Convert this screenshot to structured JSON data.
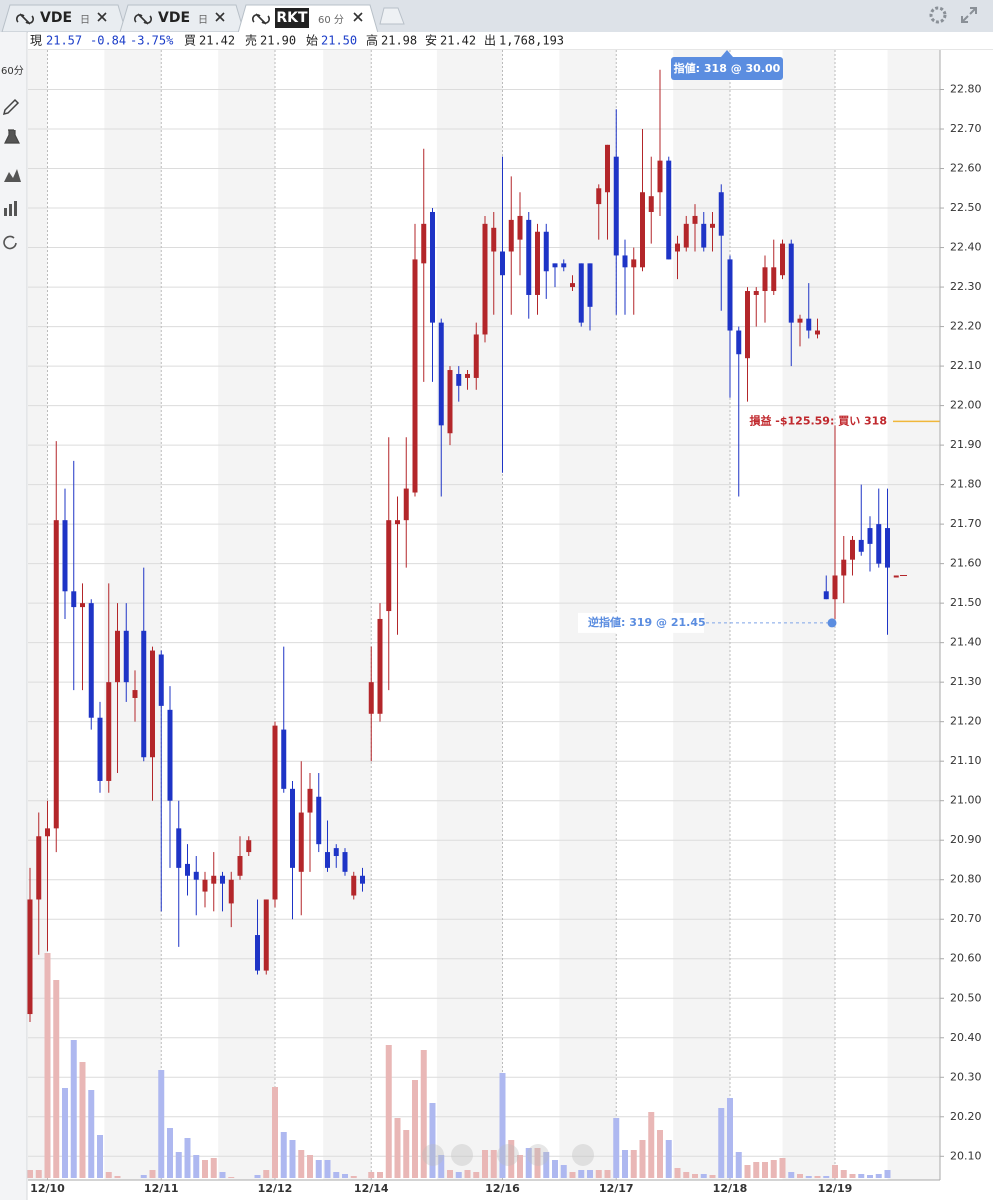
{
  "tabs": [
    {
      "symbol": "VDE",
      "period": "日"
    },
    {
      "symbol": "VDE",
      "period": "日"
    },
    {
      "symbol": "RKT",
      "period": "60 分"
    }
  ],
  "toolbar": {
    "interval": "60分"
  },
  "quote": {
    "last_label": "現",
    "last": "21.57",
    "change": "-0.84",
    "change_pct": "-3.75%",
    "fields": [
      {
        "label": "買",
        "value": "21.42"
      },
      {
        "label": "売",
        "value": "21.90"
      },
      {
        "label": "始",
        "value": "21.50"
      },
      {
        "label": "高",
        "value": "21.98"
      },
      {
        "label": "安",
        "value": "21.42"
      },
      {
        "label": "出",
        "value": "1,768,193"
      }
    ]
  },
  "chart_data": {
    "type": "candlestick",
    "categories": [
      null,
      null,
      "12/10",
      null,
      null,
      null,
      null,
      null,
      null,
      null,
      null,
      null,
      null,
      null,
      null,
      "12/11",
      null,
      null,
      null,
      null,
      null,
      null,
      null,
      null,
      null,
      null,
      null,
      null,
      "12/12",
      null,
      null,
      null,
      null,
      null,
      null,
      null,
      null,
      null,
      null,
      "12/14",
      null,
      null,
      null,
      null,
      null,
      null,
      null,
      null,
      null,
      null,
      null,
      null,
      null,
      null,
      "12/16",
      null,
      null,
      null,
      null,
      null,
      null,
      null,
      null,
      null,
      null,
      null,
      null,
      "12/17",
      null,
      null,
      null,
      null,
      null,
      null,
      null,
      null,
      null,
      null,
      null,
      null,
      "12/18",
      null,
      null,
      null,
      null,
      null,
      null,
      null,
      null,
      null,
      null,
      null,
      "12/19",
      null,
      null,
      null,
      null,
      null,
      null,
      null
    ],
    "open": [
      20.46,
      20.75,
      20.91,
      20.93,
      21.71,
      21.53,
      21.49,
      21.5,
      21.21,
      21.05,
      21.3,
      21.43,
      21.26,
      21.43,
      21.11,
      21.37,
      21.23,
      20.93,
      20.84,
      20.82,
      20.77,
      20.79,
      20.81,
      20.74,
      20.81,
      20.87,
      20.66,
      20.57,
      20.75,
      21.18,
      21.03,
      20.82,
      20.97,
      21.01,
      20.87,
      20.88,
      20.87,
      20.76,
      20.81,
      21.22,
      21.22,
      21.48,
      21.7,
      21.71,
      21.78,
      22.36,
      22.49,
      22.21,
      21.93,
      22.08,
      22.07,
      22.07,
      22.18,
      22.39,
      22.39,
      22.39,
      22.42,
      22.47,
      22.28,
      22.44,
      22.36,
      22.36,
      22.3,
      22.36,
      22.36,
      22.51,
      22.54,
      22.63,
      22.38,
      22.35,
      22.35,
      22.49,
      22.54,
      22.62,
      22.39,
      22.4,
      22.46,
      22.46,
      22.45,
      22.54,
      22.37,
      22.19,
      22.12,
      22.28,
      22.29,
      22.29,
      22.33,
      22.41,
      22.21,
      22.22,
      22.18,
      21.53,
      21.51,
      21.57,
      21.61,
      21.66,
      21.69,
      21.7,
      21.69,
      21.57
    ],
    "high": [
      20.83,
      20.97,
      21.0,
      21.91,
      21.79,
      21.86,
      21.55,
      21.51,
      21.25,
      21.55,
      21.5,
      21.5,
      21.33,
      21.59,
      21.39,
      21.38,
      21.29,
      21.0,
      20.89,
      20.86,
      20.82,
      20.87,
      20.82,
      20.82,
      20.91,
      20.91,
      20.75,
      20.75,
      21.2,
      21.39,
      21.05,
      21.1,
      21.07,
      21.07,
      20.95,
      20.89,
      20.88,
      20.82,
      20.83,
      21.39,
      21.5,
      21.92,
      21.77,
      21.92,
      22.46,
      22.65,
      22.5,
      22.22,
      22.1,
      22.1,
      22.09,
      22.21,
      22.48,
      22.49,
      22.63,
      22.58,
      22.54,
      22.49,
      22.46,
      22.46,
      22.36,
      22.37,
      22.33,
      22.36,
      22.36,
      22.56,
      22.66,
      22.75,
      22.42,
      22.4,
      22.7,
      22.63,
      22.85,
      22.63,
      22.43,
      22.48,
      22.51,
      22.49,
      22.49,
      22.56,
      22.38,
      22.2,
      22.3,
      22.3,
      22.38,
      22.42,
      22.42,
      22.42,
      22.23,
      22.31,
      22.22,
      21.57,
      21.95,
      21.67,
      21.67,
      21.8,
      21.72,
      21.79,
      21.79,
      21.57
    ],
    "low": [
      20.44,
      20.61,
      20.62,
      20.87,
      21.46,
      21.28,
      21.28,
      21.18,
      21.02,
      21.02,
      21.07,
      21.25,
      21.2,
      21.1,
      21.0,
      20.72,
      20.83,
      20.63,
      20.76,
      20.71,
      20.73,
      20.72,
      20.72,
      20.68,
      20.8,
      20.86,
      20.56,
      20.56,
      20.73,
      21.02,
      20.7,
      20.71,
      20.82,
      20.87,
      20.82,
      20.83,
      20.81,
      20.75,
      20.77,
      21.1,
      21.2,
      21.28,
      21.42,
      21.59,
      21.77,
      22.06,
      22.06,
      21.77,
      21.9,
      22.01,
      22.04,
      22.04,
      22.16,
      22.23,
      21.83,
      22.23,
      22.33,
      22.22,
      22.23,
      22.27,
      22.3,
      22.34,
      22.29,
      22.2,
      22.19,
      22.42,
      22.42,
      22.23,
      22.23,
      22.23,
      22.34,
      22.41,
      22.48,
      22.37,
      22.32,
      22.39,
      22.39,
      22.39,
      22.39,
      22.24,
      22.02,
      21.77,
      22.01,
      22.2,
      22.21,
      22.28,
      22.32,
      22.1,
      22.15,
      22.17,
      22.17,
      21.51,
      21.46,
      21.5,
      21.57,
      21.62,
      21.58,
      21.59,
      21.42,
      21.57
    ],
    "close": [
      20.75,
      20.91,
      20.93,
      21.71,
      21.53,
      21.49,
      21.5,
      21.21,
      21.05,
      21.3,
      21.43,
      21.3,
      21.28,
      21.11,
      21.38,
      21.24,
      21.0,
      20.83,
      20.81,
      20.8,
      20.8,
      20.81,
      20.79,
      20.8,
      20.86,
      20.9,
      20.57,
      20.75,
      21.19,
      21.03,
      20.83,
      20.97,
      21.03,
      20.89,
      20.83,
      20.86,
      20.82,
      20.81,
      20.79,
      21.3,
      21.46,
      21.71,
      21.71,
      21.79,
      22.37,
      22.46,
      22.21,
      21.95,
      22.09,
      22.05,
      22.08,
      22.18,
      22.46,
      22.45,
      22.33,
      22.47,
      22.48,
      22.28,
      22.44,
      22.34,
      22.35,
      22.35,
      22.31,
      22.21,
      22.25,
      22.55,
      22.66,
      22.38,
      22.35,
      22.37,
      22.54,
      22.53,
      22.62,
      22.37,
      22.41,
      22.46,
      22.48,
      22.4,
      22.46,
      22.43,
      22.19,
      22.13,
      22.29,
      22.29,
      22.35,
      22.35,
      22.41,
      22.21,
      22.22,
      22.19,
      22.19,
      21.51,
      21.57,
      21.61,
      21.66,
      21.63,
      21.65,
      21.6,
      21.59,
      21.57
    ],
    "volume": [
      8,
      8,
      225,
      198,
      90,
      138,
      116,
      88,
      43,
      6,
      2,
      0,
      0,
      3,
      8,
      108,
      50,
      26,
      40,
      23,
      18,
      20,
      6,
      1,
      0,
      0,
      3,
      8,
      91,
      46,
      38,
      28,
      23,
      18,
      18,
      6,
      4,
      2,
      0,
      6,
      6,
      133,
      60,
      48,
      98,
      128,
      75,
      23,
      8,
      6,
      8,
      6,
      28,
      28,
      105,
      38,
      23,
      30,
      30,
      26,
      18,
      13,
      6,
      8,
      8,
      8,
      8,
      60,
      28,
      28,
      38,
      66,
      48,
      38,
      10,
      6,
      4,
      4,
      3,
      70,
      80,
      26,
      13,
      16,
      16,
      18,
      20,
      6,
      4,
      2,
      2,
      2,
      13,
      8,
      4,
      4,
      3,
      4,
      8,
      0
    ],
    "up_color": "#b3262a",
    "down_color": "#1e34c6",
    "volume_up_color": "#e9b7b6",
    "volume_down_color": "#aeb8f0",
    "ylim": [
      20.04,
      22.9
    ],
    "yticks": [
      {
        "value": 22.8,
        "label": "22.80"
      },
      {
        "value": 22.7,
        "label": "22.70"
      },
      {
        "value": 22.6,
        "label": "22.60"
      },
      {
        "value": 22.5,
        "label": "22.50"
      },
      {
        "value": 22.4,
        "label": "22.40"
      },
      {
        "value": 22.3,
        "label": "22.30"
      },
      {
        "value": 22.2,
        "label": "22.20"
      },
      {
        "value": 22.1,
        "label": "22.10"
      },
      {
        "value": 22.0,
        "label": "22.00"
      },
      {
        "value": 21.9,
        "label": "21.90"
      },
      {
        "value": 21.8,
        "label": "21.80"
      },
      {
        "value": 21.7,
        "label": "21.70"
      },
      {
        "value": 21.6,
        "label": "21.60"
      },
      {
        "value": 21.5,
        "label": "21.50"
      },
      {
        "value": 21.4,
        "label": "21.40"
      },
      {
        "value": 21.3,
        "label": "21.30"
      },
      {
        "value": 21.2,
        "label": "21.20"
      },
      {
        "value": 21.1,
        "label": "21.10"
      },
      {
        "value": 21.0,
        "label": "21.00"
      },
      {
        "value": 20.9,
        "label": "20.90"
      },
      {
        "value": 20.8,
        "label": "20.80"
      },
      {
        "value": 20.7,
        "label": "20.70"
      },
      {
        "value": 20.6,
        "label": "20.60"
      },
      {
        "value": 20.5,
        "label": "20.50"
      },
      {
        "value": 20.4,
        "label": "20.40"
      },
      {
        "value": 20.3,
        "label": "20.30"
      },
      {
        "value": 20.2,
        "label": "20.20"
      },
      {
        "value": 20.1,
        "label": "20.10"
      }
    ],
    "grid": true,
    "last_price": 21.57,
    "position": {
      "text": "損益 -$125.59: 買い 318",
      "price": 21.96
    },
    "stop_order": {
      "text": "逆指値: 319 @ 21.45",
      "price": 21.45
    },
    "limit_order": {
      "text": "指値: 318 @ 30.00"
    }
  }
}
